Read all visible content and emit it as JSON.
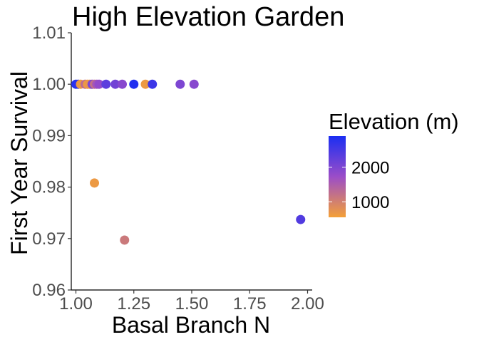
{
  "chart_data": {
    "type": "scatter",
    "title": "High Elevation Garden",
    "xlabel": "Basal Branch N",
    "ylabel": "First Year Survival",
    "xlim": [
      0.98,
      2.02
    ],
    "ylim": [
      0.96,
      1.01
    ],
    "x_ticks": [
      1.0,
      1.25,
      1.5,
      1.75,
      2.0
    ],
    "x_tick_labels": [
      "1.00",
      "1.25",
      "1.50",
      "1.75",
      "2.00"
    ],
    "y_ticks": [
      0.96,
      0.97,
      0.98,
      0.99,
      1.0,
      1.01
    ],
    "y_tick_labels": [
      "0.96",
      "0.97",
      "0.98",
      "0.99",
      "1.00",
      "1.01"
    ],
    "grid": false,
    "legend": {
      "title": "Elevation (m)",
      "placement": "right",
      "type": "colorbar",
      "ticks": [
        2000,
        1000
      ],
      "tick_labels": [
        "2000",
        "1000"
      ],
      "range": [
        550,
        2900
      ],
      "color_low": "#F4A037",
      "color_mid": "#9B4DC8",
      "color_high": "#1B2EF2"
    },
    "points": [
      {
        "x": 1.0,
        "y": 1.0,
        "elevation": 2800
      },
      {
        "x": 1.01,
        "y": 1.0,
        "elevation": 2750
      },
      {
        "x": 1.02,
        "y": 1.0,
        "elevation": 650
      },
      {
        "x": 1.04,
        "y": 1.0,
        "elevation": 1300
      },
      {
        "x": 1.05,
        "y": 1.0,
        "elevation": 650
      },
      {
        "x": 1.06,
        "y": 1.0,
        "elevation": 700
      },
      {
        "x": 1.07,
        "y": 1.0,
        "elevation": 2000
      },
      {
        "x": 1.08,
        "y": 1.0,
        "elevation": 1200
      },
      {
        "x": 1.09,
        "y": 1.0,
        "elevation": 1600
      },
      {
        "x": 1.1,
        "y": 1.0,
        "elevation": 1800
      },
      {
        "x": 1.13,
        "y": 1.0,
        "elevation": 2300
      },
      {
        "x": 1.17,
        "y": 1.0,
        "elevation": 2100
      },
      {
        "x": 1.2,
        "y": 1.0,
        "elevation": 1900
      },
      {
        "x": 1.25,
        "y": 1.0,
        "elevation": 2850
      },
      {
        "x": 1.3,
        "y": 1.0,
        "elevation": 650
      },
      {
        "x": 1.33,
        "y": 1.0,
        "elevation": 2600
      },
      {
        "x": 1.45,
        "y": 1.0,
        "elevation": 2000
      },
      {
        "x": 1.51,
        "y": 1.0,
        "elevation": 1900
      },
      {
        "x": 1.08,
        "y": 0.9808,
        "elevation": 650
      },
      {
        "x": 1.21,
        "y": 0.9697,
        "elevation": 1100
      },
      {
        "x": 1.97,
        "y": 0.9737,
        "elevation": 2400
      }
    ]
  }
}
